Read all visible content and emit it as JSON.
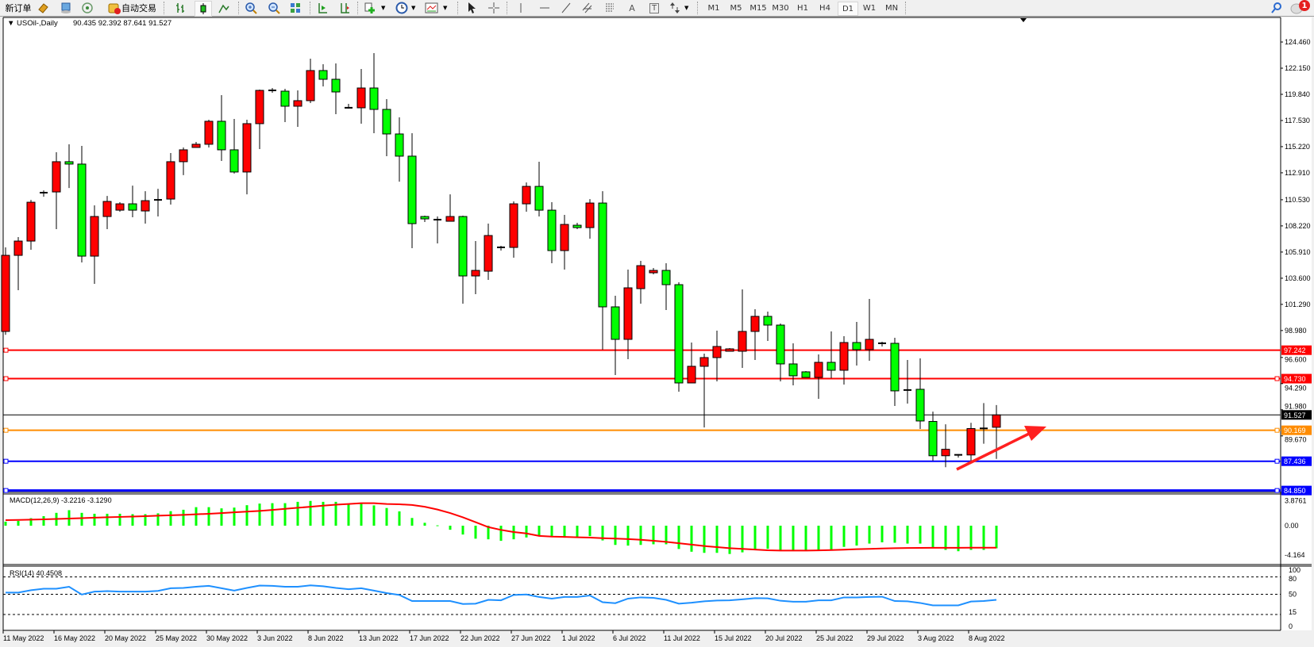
{
  "toolbar": {
    "new_order": "新订单",
    "auto_trading": "自动交易",
    "icons": [
      "new-order-icon",
      "gold-book-icon",
      "market-watch-icon",
      "signals-icon",
      "auto-trading-icon",
      "bar-chart-icon",
      "candlestick-chart-icon",
      "line-chart-icon",
      "zoom-in-icon",
      "zoom-out-icon",
      "tile-windows-icon",
      "auto-scroll-icon",
      "chart-shift-icon",
      "indicators-icon",
      "periods-icon",
      "templates-icon",
      "cursor-icon",
      "crosshair-icon",
      "vertical-line-icon",
      "horizontal-line-icon",
      "trendline-icon",
      "equidistant-channel-icon",
      "fibonacci-icon",
      "text-icon",
      "text-label-icon",
      "arrows-icon",
      "search-icon",
      "notification-icon"
    ],
    "text_tool": "A",
    "label_tool": "T",
    "timeframes": [
      "M1",
      "M5",
      "M15",
      "M30",
      "H1",
      "H4",
      "D1",
      "W1",
      "MN"
    ],
    "active_timeframe": "D1",
    "notification_count": "1"
  },
  "chart": {
    "symbol_header": "USOil-,Daily",
    "ohlc_header": "90.435 92.392 87.641 91.527",
    "colors": {
      "up_candle": "#ff0000",
      "down_candle": "#00ff00",
      "macd_histogram": "#00ff00",
      "macd_signal": "#ff0000",
      "rsi_line": "#1e90ff",
      "annotation_arrow": "#ff2020"
    },
    "annotation": "red-upward-arrow"
  },
  "chart_data": [
    {
      "type": "candlestick",
      "symbol": "USOil-",
      "timeframe": "Daily",
      "x_tick_labels": [
        "11 May 2022",
        "16 May 2022",
        "20 May 2022",
        "25 May 2022",
        "30 May 2022",
        "3 Jun 2022",
        "8 Jun 2022",
        "13 Jun 2022",
        "17 Jun 2022",
        "22 Jun 2022",
        "27 Jun 2022",
        "1 Jul 2022",
        "6 Jul 2022",
        "11 Jul 2022",
        "15 Jul 2022",
        "20 Jul 2022",
        "25 Jul 2022",
        "29 Jul 2022",
        "3 Aug 2022",
        "8 Aug 2022"
      ],
      "y_tick_labels": [
        "124.460",
        "122.150",
        "119.840",
        "117.530",
        "115.220",
        "112.910",
        "110.530",
        "108.220",
        "105.910",
        "103.600",
        "101.290",
        "98.980",
        "96.600",
        "94.290",
        "91.980",
        "89.670"
      ],
      "ylim": [
        84.85,
        124.46
      ],
      "ohlc_order": [
        "open",
        "high",
        "low",
        "close"
      ],
      "candles": [
        [
          98.9,
          106.32,
          98.6,
          105.62
        ],
        [
          105.62,
          107.23,
          102.54,
          106.88
        ],
        [
          106.88,
          110.52,
          106.11,
          110.31
        ],
        [
          111.12,
          111.36,
          110.8,
          111.19
        ],
        [
          111.22,
          114.73,
          107.93,
          113.89
        ],
        [
          113.89,
          115.43,
          111.57,
          113.68
        ],
        [
          113.68,
          115.29,
          104.99,
          105.55
        ],
        [
          105.55,
          110.03,
          103.1,
          109.05
        ],
        [
          109.05,
          110.87,
          107.93,
          110.38
        ],
        [
          109.61,
          110.31,
          109.47,
          110.17
        ],
        [
          110.17,
          111.78,
          108.98,
          109.61
        ],
        [
          109.54,
          111.29,
          108.42,
          110.45
        ],
        [
          110.45,
          111.5,
          109.05,
          110.59
        ],
        [
          110.59,
          114.66,
          110.1,
          113.89
        ],
        [
          113.89,
          115.15,
          112.7,
          114.94
        ],
        [
          115.15,
          115.64,
          115.15,
          115.43
        ],
        [
          115.43,
          117.6,
          115.15,
          117.46
        ],
        [
          117.46,
          119.77,
          113.96,
          114.94
        ],
        [
          114.94,
          117.67,
          112.84,
          112.98
        ],
        [
          112.98,
          117.6,
          111.01,
          117.25
        ],
        [
          117.25,
          120.26,
          115.01,
          120.19
        ],
        [
          120.26,
          120.4,
          119.98,
          120.12
        ],
        [
          120.12,
          120.33,
          117.39,
          118.79
        ],
        [
          118.79,
          120.19,
          116.97,
          119.28
        ],
        [
          119.28,
          122.99,
          119.07,
          121.94
        ],
        [
          121.94,
          122.5,
          120.54,
          121.17
        ],
        [
          121.17,
          122.57,
          118.09,
          120.05
        ],
        [
          118.65,
          119.0,
          118.58,
          118.66
        ],
        [
          118.65,
          122.08,
          117.25,
          120.4
        ],
        [
          120.4,
          123.48,
          116.41,
          118.51
        ],
        [
          118.51,
          119.42,
          114.38,
          116.34
        ],
        [
          116.34,
          117.81,
          112.13,
          114.38
        ],
        [
          114.38,
          116.41,
          106.25,
          108.42
        ],
        [
          109.05,
          109.12,
          108.56,
          108.84
        ],
        [
          108.84,
          109.05,
          106.67,
          108.7
        ],
        [
          108.63,
          111.01,
          108.63,
          109.05
        ],
        [
          109.05,
          109.12,
          101.35,
          103.8
        ],
        [
          103.8,
          106.88,
          102.19,
          104.29
        ],
        [
          104.22,
          108.42,
          103.45,
          107.37
        ],
        [
          106.32,
          106.46,
          106.04,
          106.33
        ],
        [
          106.32,
          110.38,
          105.41,
          110.17
        ],
        [
          110.17,
          112.06,
          109.47,
          111.71
        ],
        [
          111.71,
          113.89,
          109.05,
          109.61
        ],
        [
          109.61,
          110.31,
          104.92,
          106.04
        ],
        [
          106.04,
          109.19,
          104.36,
          108.35
        ],
        [
          108.28,
          108.49,
          107.93,
          108.07
        ],
        [
          108.07,
          110.59,
          107.09,
          110.24
        ],
        [
          110.24,
          111.29,
          97.29,
          101.07
        ],
        [
          101.07,
          102.05,
          95.05,
          98.2
        ],
        [
          98.2,
          104.36,
          96.45,
          102.75
        ],
        [
          102.68,
          105.13,
          101.35,
          104.71
        ],
        [
          104.08,
          104.5,
          103.94,
          104.29
        ],
        [
          104.29,
          104.92,
          100.79,
          103.03
        ],
        [
          103.03,
          103.24,
          93.58,
          94.35
        ],
        [
          94.35,
          97.92,
          94.35,
          95.82
        ],
        [
          95.82,
          96.94,
          90.42,
          96.59
        ],
        [
          96.59,
          98.97,
          94.49,
          97.57
        ],
        [
          97.15,
          97.43,
          97.15,
          97.36
        ],
        [
          97.15,
          102.61,
          95.68,
          98.9
        ],
        [
          98.9,
          100.86,
          96.38,
          100.23
        ],
        [
          100.23,
          100.65,
          98.06,
          99.46
        ],
        [
          99.46,
          99.6,
          94.49,
          96.03
        ],
        [
          96.03,
          97.85,
          94.14,
          94.98
        ],
        [
          95.33,
          95.4,
          94.84,
          94.84
        ],
        [
          94.84,
          96.87,
          92.95,
          96.17
        ],
        [
          96.17,
          98.9,
          94.77,
          95.47
        ],
        [
          95.47,
          98.48,
          94.21,
          97.92
        ],
        [
          97.92,
          99.74,
          95.89,
          97.29
        ],
        [
          97.29,
          101.77,
          96.31,
          98.2
        ],
        [
          97.85,
          97.99,
          97.57,
          97.86
        ],
        [
          97.85,
          98.34,
          92.32,
          93.65
        ],
        [
          93.72,
          96.38,
          92.53,
          93.73
        ],
        [
          93.79,
          96.52,
          90.29,
          90.99
        ],
        [
          90.95,
          91.82,
          87.48,
          87.92
        ],
        [
          87.92,
          90.7,
          86.91,
          88.49
        ],
        [
          87.98,
          88.05,
          87.76,
          88.02
        ],
        [
          87.99,
          90.83,
          87.48,
          90.32
        ],
        [
          90.33,
          92.57,
          88.98,
          90.34
        ],
        [
          90.435,
          92.392,
          87.641,
          91.527
        ]
      ],
      "horizontal_lines": [
        {
          "price": "97.242",
          "color": "#ff0000"
        },
        {
          "price": "94.730",
          "color": "#ff0000"
        },
        {
          "price": "91.527",
          "color": "#000000",
          "kind": "bid"
        },
        {
          "price": "90.169",
          "color": "#ff8c00"
        },
        {
          "price": "87.436",
          "color": "#0000ff"
        },
        {
          "price": "84.850",
          "color": "#0000ff"
        }
      ],
      "grid": false
    },
    {
      "type": "bar",
      "indicator_label": "MACD(12,26,9) -3.2216 -3.1290",
      "y_tick_labels": [
        "3.8761",
        "0.00",
        "-4.164"
      ],
      "ylim": [
        -4.164,
        3.8761
      ],
      "histogram": [
        0.57,
        0.68,
        1.07,
        1.36,
        1.83,
        2.21,
        1.83,
        1.7,
        1.7,
        1.7,
        1.64,
        1.64,
        1.76,
        2.07,
        2.27,
        2.64,
        2.64,
        2.47,
        2.58,
        2.92,
        3.15,
        3.21,
        3.21,
        3.4,
        3.53,
        3.4,
        3.4,
        3.15,
        3.15,
        2.89,
        2.52,
        2.04,
        1.1,
        0.41,
        0.05,
        -0.58,
        -1.26,
        -1.85,
        -1.94,
        -2.16,
        -1.94,
        -1.68,
        -1.48,
        -1.61,
        -1.71,
        -1.61,
        -1.48,
        -2.1,
        -2.74,
        -2.84,
        -2.74,
        -2.65,
        -2.65,
        -3.32,
        -3.71,
        -3.87,
        -3.87,
        -4.03,
        -3.8,
        -3.48,
        -3.29,
        -3.55,
        -3.55,
        -3.55,
        -3.55,
        -3.39,
        -3.02,
        -2.83,
        -2.55,
        -2.37,
        -2.43,
        -2.55,
        -2.55,
        -3.2,
        -3.45,
        -3.64,
        -3.45,
        -3.45,
        -3.2216
      ],
      "signal": [
        0.79,
        0.82,
        0.86,
        0.9,
        0.96,
        1.02,
        1.08,
        1.14,
        1.2,
        1.25,
        1.3,
        1.36,
        1.42,
        1.48,
        1.54,
        1.62,
        1.7,
        1.8,
        1.9,
        2.0,
        2.1,
        2.25,
        2.4,
        2.55,
        2.7,
        2.85,
        3.0,
        3.1,
        3.2,
        3.2,
        3.1,
        3.05,
        2.95,
        2.7,
        2.3,
        1.8,
        1.2,
        0.5,
        -0.2,
        -0.6,
        -0.9,
        -1.1,
        -1.45,
        -1.55,
        -1.6,
        -1.65,
        -1.7,
        -1.78,
        -1.84,
        -1.9,
        -2.0,
        -2.15,
        -2.3,
        -2.5,
        -2.7,
        -2.9,
        -3.05,
        -3.2,
        -3.3,
        -3.4,
        -3.5,
        -3.55,
        -3.55,
        -3.55,
        -3.52,
        -3.48,
        -3.42,
        -3.35,
        -3.3,
        -3.25,
        -3.2,
        -3.18,
        -3.16,
        -3.15,
        -3.15,
        -3.15,
        -3.14,
        -3.13,
        -3.129
      ]
    },
    {
      "type": "line",
      "indicator_label": "RSI(14) 40.4508",
      "y_tick_labels": [
        "100",
        "80",
        "50",
        "15",
        "0"
      ],
      "levels": [
        80,
        50,
        15
      ],
      "ylim": [
        0,
        100
      ],
      "values": [
        52.9,
        52.9,
        57,
        59.6,
        59.6,
        63,
        49.6,
        54.6,
        55.4,
        54.6,
        54.6,
        54.6,
        55.8,
        60.4,
        61,
        63,
        64.6,
        60.4,
        56.3,
        61,
        65,
        64.6,
        63,
        63,
        65.4,
        63.8,
        61,
        58.8,
        60.4,
        56.3,
        52,
        48.8,
        38.3,
        38.3,
        38.3,
        38.3,
        33.3,
        33.8,
        40.4,
        39.6,
        48.8,
        49.6,
        45.4,
        42.5,
        45.4,
        45.4,
        47.9,
        36.3,
        34.6,
        42.5,
        44.6,
        43.8,
        40.4,
        33.8,
        35.4,
        37.9,
        39.2,
        39.6,
        41.3,
        43.3,
        42.9,
        38.8,
        37.1,
        37.1,
        39.6,
        39.6,
        44.6,
        44.6,
        45.4,
        45.8,
        38.3,
        37.9,
        35,
        30.8,
        30.8,
        30.8,
        37.5,
        38.3,
        40.4508
      ]
    }
  ]
}
